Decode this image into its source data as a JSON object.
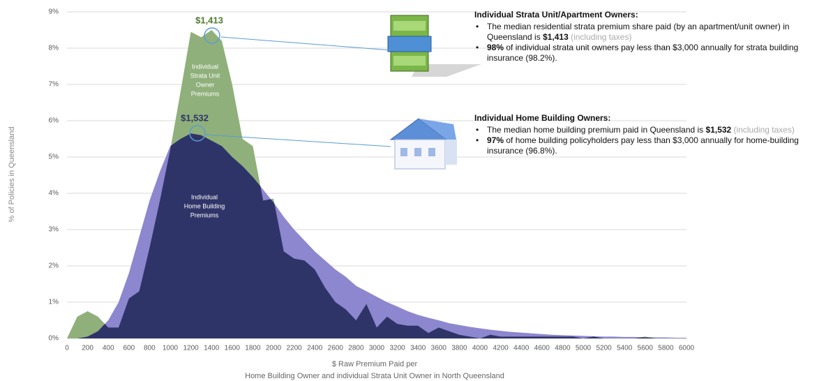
{
  "chart_data": {
    "type": "area",
    "y_label": "% of Policies in Queensland",
    "x_label": [
      "$ Raw Premium Paid per",
      "Home Building Owner and individual Strata Unit Owner in North Queensland"
    ],
    "x": [
      0,
      100,
      200,
      300,
      400,
      500,
      600,
      700,
      800,
      900,
      1000,
      1100,
      1200,
      1300,
      1400,
      1500,
      1600,
      1700,
      1800,
      1900,
      2000,
      2100,
      2200,
      2300,
      2400,
      2500,
      2600,
      2700,
      2800,
      2900,
      3000,
      3100,
      3200,
      3300,
      3400,
      3500,
      3600,
      3700,
      3800,
      3900,
      4000,
      4100,
      4200,
      4300,
      4400,
      4500,
      4600,
      4700,
      4800,
      4900,
      5000,
      5100,
      5200,
      5300,
      5400,
      5500,
      5600,
      5700,
      5800,
      5900,
      6000
    ],
    "series": [
      {
        "name": "Individual Strata Unit Owner Premiums",
        "color": "#8fb07a",
        "values": [
          0,
          0.6,
          0.75,
          0.6,
          0.3,
          0.3,
          1.1,
          1.3,
          2.5,
          3.8,
          5.2,
          6.8,
          8.45,
          8.3,
          8.5,
          8.2,
          7.0,
          5.5,
          5.3,
          3.8,
          3.85,
          2.4,
          2.2,
          2.15,
          1.9,
          1.4,
          1.0,
          0.8,
          0.5,
          0.95,
          0.3,
          0.6,
          0.4,
          0.35,
          0.35,
          0.15,
          0.3,
          0.2,
          0.1,
          0.05,
          0,
          0.1,
          0.05,
          0.05,
          0.05,
          0.05,
          0.05,
          0.05,
          0.05,
          0.05,
          0,
          0.05,
          0,
          0,
          0,
          0,
          0.05,
          0,
          0,
          0,
          0
        ]
      },
      {
        "name": "Individual Home Building Premiums",
        "color": "#8d87cf",
        "values": [
          0,
          0,
          0.05,
          0.2,
          0.5,
          1.0,
          1.8,
          2.8,
          3.8,
          4.6,
          5.3,
          5.5,
          5.65,
          5.6,
          5.45,
          5.3,
          5.0,
          4.75,
          4.45,
          4.1,
          3.75,
          3.35,
          3.0,
          2.7,
          2.4,
          2.15,
          1.9,
          1.7,
          1.45,
          1.3,
          1.15,
          1.0,
          0.88,
          0.75,
          0.65,
          0.57,
          0.5,
          0.42,
          0.37,
          0.32,
          0.28,
          0.24,
          0.21,
          0.18,
          0.16,
          0.14,
          0.12,
          0.1,
          0.09,
          0.08,
          0.07,
          0.06,
          0.05,
          0.05,
          0.04,
          0.04,
          0.03,
          0.03,
          0.03,
          0.02,
          0.02
        ]
      }
    ],
    "overlap_color": "#2f3468",
    "xlim": [
      0,
      6000
    ],
    "xticks": [
      0,
      200,
      400,
      600,
      800,
      1000,
      1200,
      1400,
      1600,
      1800,
      2000,
      2200,
      2400,
      2600,
      2800,
      3000,
      3200,
      3400,
      3600,
      3800,
      4000,
      4200,
      4400,
      4600,
      4800,
      5000,
      5200,
      5400,
      5600,
      5800,
      6000
    ],
    "ylim": [
      0,
      9
    ],
    "yticks": [
      {
        "value": 0,
        "label": "0%"
      },
      {
        "value": 1,
        "label": "1%"
      },
      {
        "value": 2,
        "label": "2%"
      },
      {
        "value": 3,
        "label": "3%"
      },
      {
        "value": 4,
        "label": "4%"
      },
      {
        "value": 5,
        "label": "5%"
      },
      {
        "value": 6,
        "label": "6%"
      },
      {
        "value": 7,
        "label": "7%"
      },
      {
        "value": 8,
        "label": "8%"
      },
      {
        "value": 9,
        "label": "9%"
      }
    ],
    "grid": true,
    "series_labels": [
      [
        "Individual",
        "Strata Unit",
        "Owner",
        "Premiums"
      ],
      [
        "Individual",
        "Home Building",
        "Premiums"
      ]
    ],
    "median_labels": [
      "$1,413",
      "$1,532"
    ]
  },
  "panels": [
    {
      "heading": "Individual Strata Unit/Apartment Owners:",
      "bullets": [
        [
          {
            "text": "The median residential strata premium share paid (by an apartment/unit owner) in Queensland is "
          },
          {
            "text": "$1,413",
            "style": "bold"
          },
          {
            "text": " (including taxes)",
            "style": "muted"
          }
        ],
        [
          {
            "text": "98%",
            "style": "bold"
          },
          {
            "text": " of individual strata unit owners pay less than $3,000 annually for strata building insurance (98.2%)."
          }
        ]
      ]
    },
    {
      "heading": "Individual Home Building Owners:",
      "bullets": [
        [
          {
            "text": "The median home building premium paid in Queensland is "
          },
          {
            "text": "$1,532",
            "style": "bold"
          },
          {
            "text": " (including taxes)",
            "style": "muted"
          }
        ],
        [
          {
            "text": "97%",
            "style": "bold"
          },
          {
            "text": " of home building policyholders pay less than $3,000 annually for home-building insurance (96.8%)."
          }
        ]
      ]
    }
  ]
}
